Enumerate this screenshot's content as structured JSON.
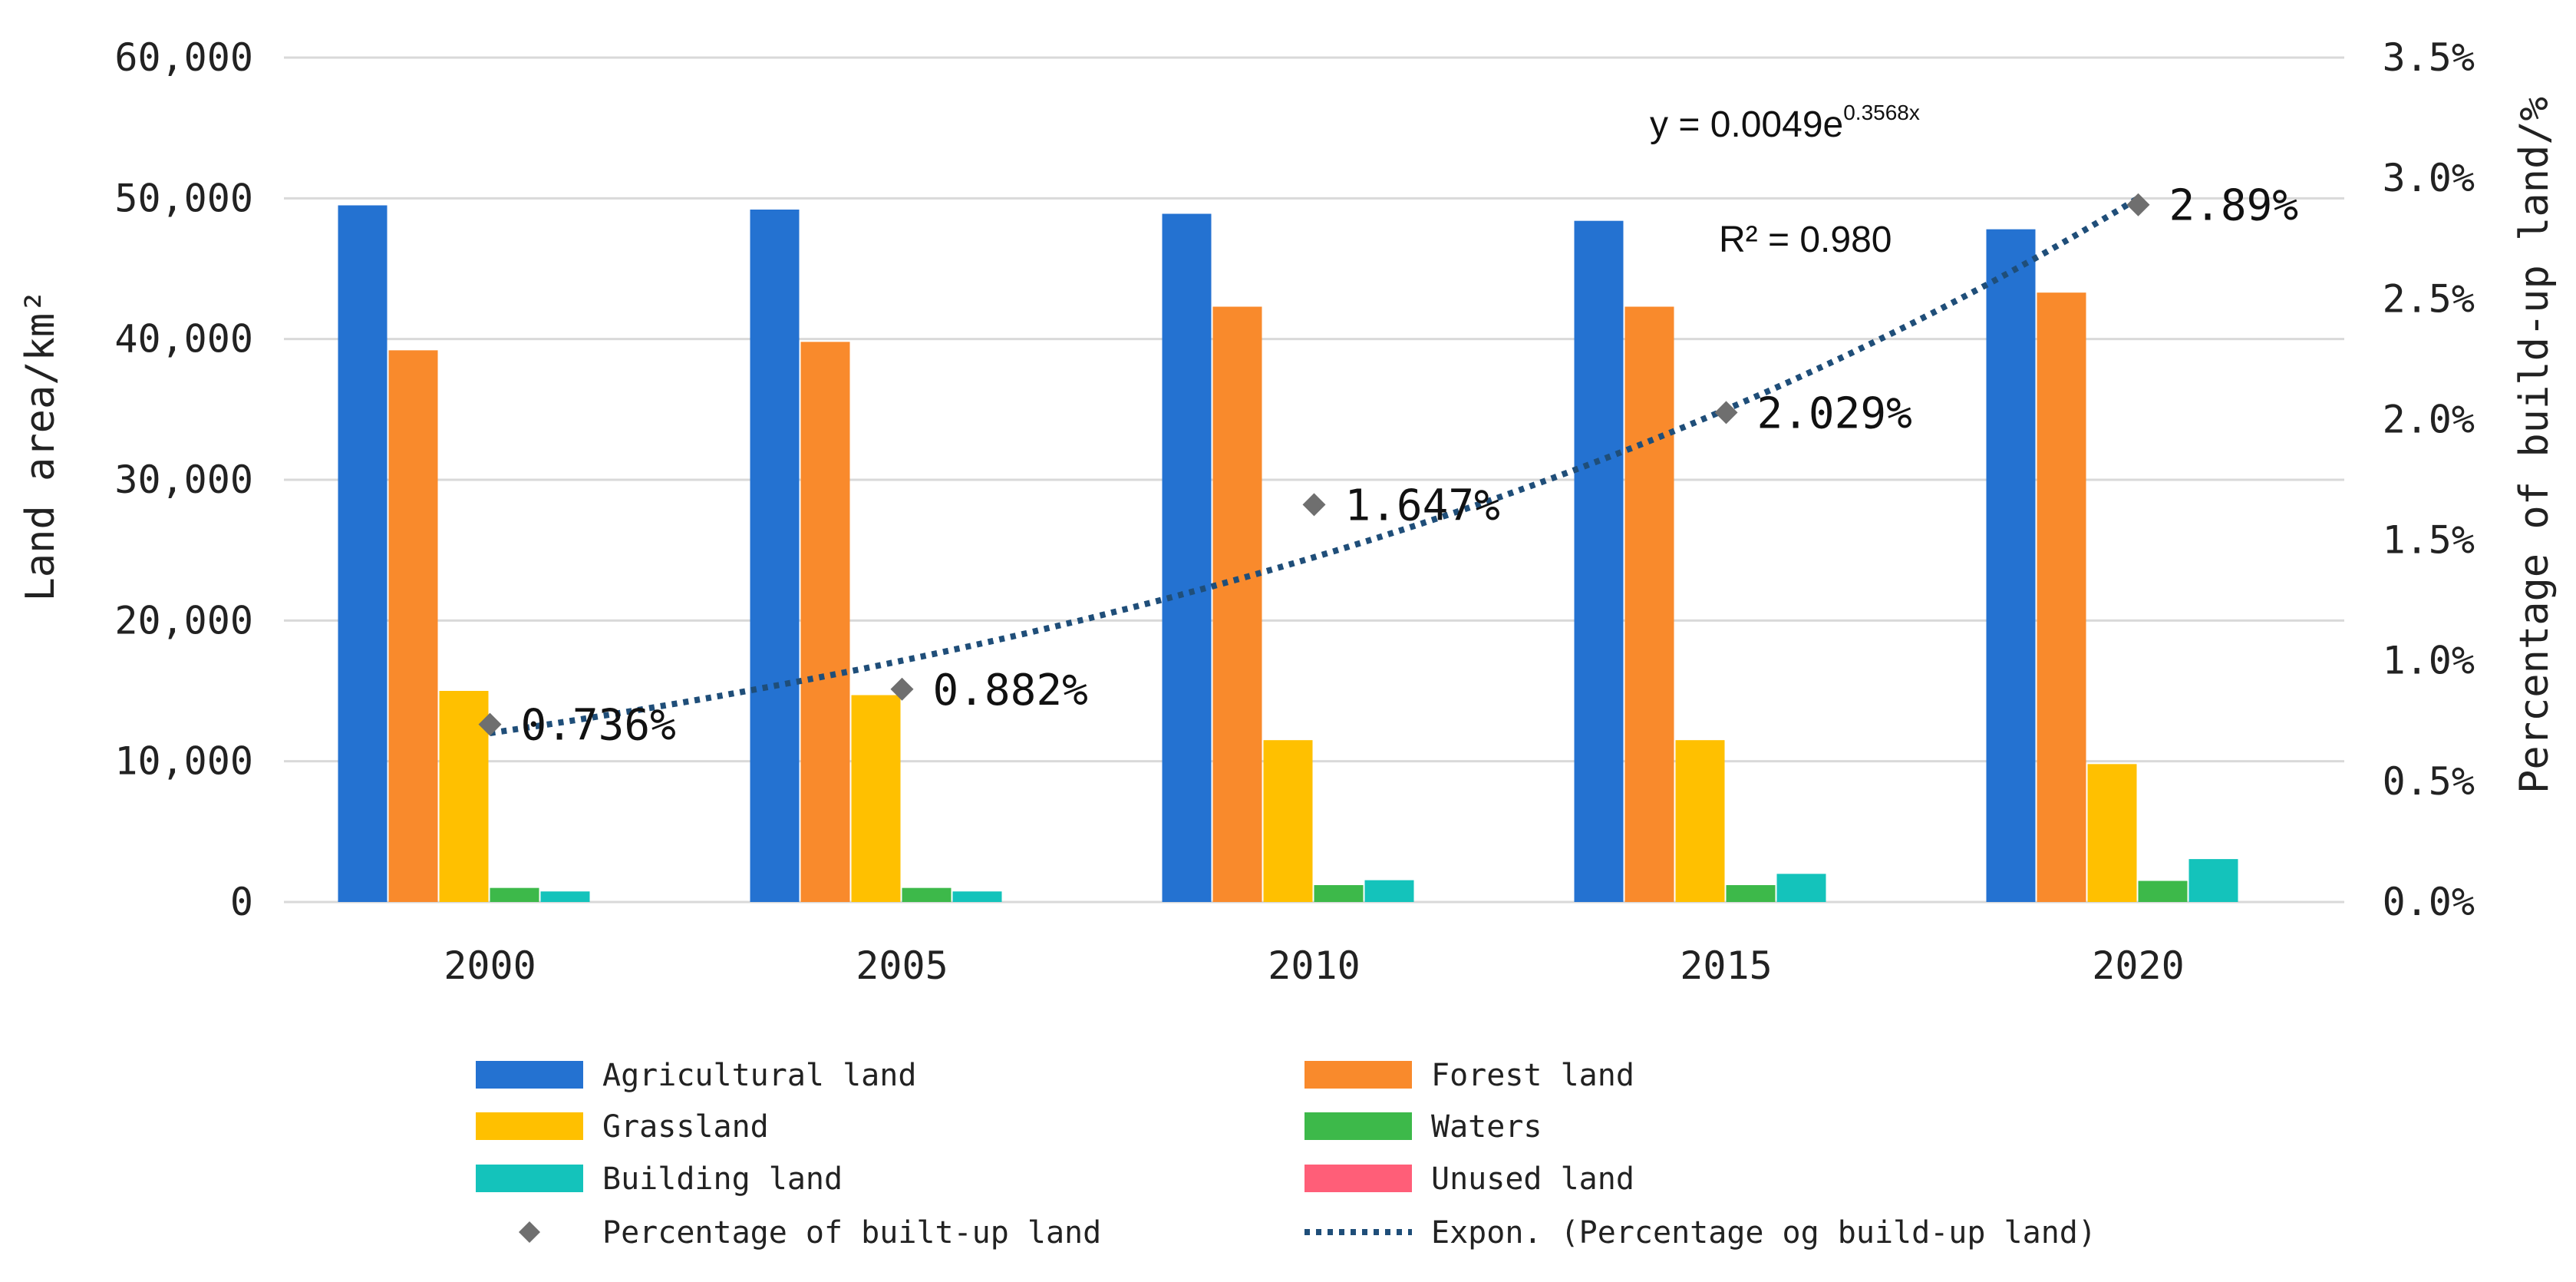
{
  "chart_data": {
    "type": "bar",
    "categories": [
      "2000",
      "2005",
      "2010",
      "2015",
      "2020"
    ],
    "series": [
      {
        "name": "Agricultural land",
        "color": "#2472D1",
        "values": [
          49500,
          49200,
          48900,
          48400,
          47800
        ]
      },
      {
        "name": "Forest land",
        "color": "#F98A2C",
        "values": [
          39200,
          39800,
          42300,
          42300,
          43300
        ]
      },
      {
        "name": "Grassland",
        "color": "#FFC000",
        "values": [
          15000,
          14700,
          11500,
          11500,
          9800
        ]
      },
      {
        "name": "Waters",
        "color": "#3DB94A",
        "values": [
          1000,
          1000,
          1200,
          1200,
          1500
        ]
      },
      {
        "name": "Building land",
        "color": "#14C3BB",
        "values": [
          750,
          750,
          1550,
          2000,
          3050
        ]
      },
      {
        "name": "Unused land",
        "color": "#FF5E78",
        "values": [
          0,
          0,
          0,
          0,
          0
        ]
      }
    ],
    "line_series": {
      "name": "Percentage of built-up land",
      "color": "#6F6F6F",
      "marker": "diamond",
      "values": [
        0.736,
        0.882,
        1.647,
        2.029,
        2.89
      ],
      "labels": [
        "0.736%",
        "0.882%",
        "1.647%",
        "2.029%",
        "2.89%"
      ]
    },
    "trendline": {
      "name": "Expon. (Percentage og build-up land)",
      "color": "#1F4E79",
      "style": "dotted",
      "type": "exponential",
      "a": 0.0049,
      "b": 0.3568,
      "equation_base": "y = 0.0049e",
      "equation_exponent": "0.3568x",
      "r2_label": "R² = 0.980"
    },
    "ylabel_left": "Land area/km²",
    "ylabel_right": "Percentage of build-up land/%",
    "yticks_left": [
      "0",
      "10,000",
      "20,000",
      "30,000",
      "40,000",
      "50,000",
      "60,000"
    ],
    "yticks_right": [
      "0.0%",
      "0.5%",
      "1.0%",
      "1.5%",
      "2.0%",
      "2.5%",
      "3.0%",
      "3.5%"
    ],
    "ylim_left": [
      0,
      60000
    ],
    "ylim_right": [
      0,
      3.5
    ],
    "grid": true,
    "legend_position": "bottom"
  }
}
